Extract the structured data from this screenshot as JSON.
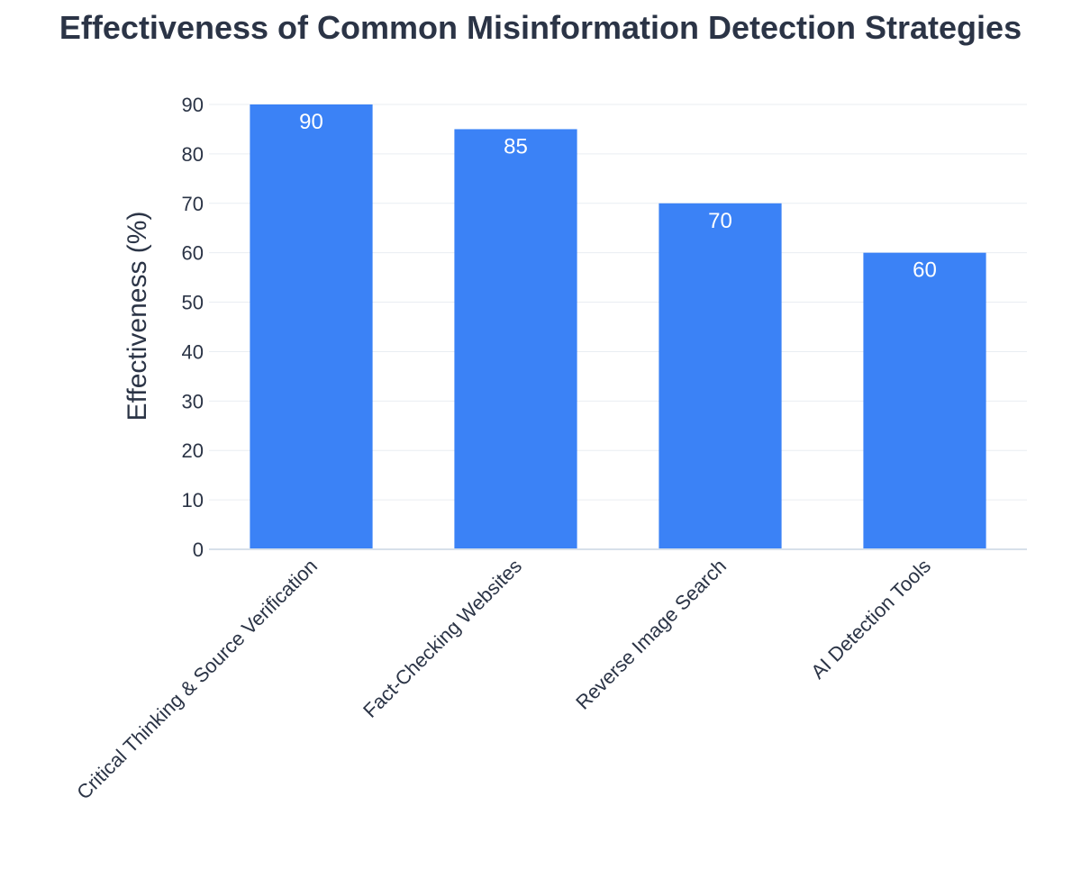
{
  "chart_data": {
    "type": "bar",
    "title": "Effectiveness of Common Misinformation Detection Strategies",
    "categories": [
      "Critical Thinking & Source Verification",
      "Fact-Checking Websites",
      "Reverse Image Search",
      "AI Detection Tools"
    ],
    "values": [
      90,
      85,
      70,
      60
    ],
    "data_labels": [
      "90",
      "85",
      "70",
      "60"
    ],
    "xlabel": "",
    "ylabel": "Effectiveness (%)",
    "ylim": [
      0,
      90
    ],
    "yticks": [
      0,
      10,
      20,
      30,
      40,
      50,
      60,
      70,
      80,
      90
    ],
    "grid": true,
    "legend": "none",
    "colors": {
      "bar": "#3b82f6",
      "text": "#2b3446",
      "grid": "#e9edf2",
      "axis": "#d7e0ea",
      "data_label": "#ffffff"
    }
  }
}
